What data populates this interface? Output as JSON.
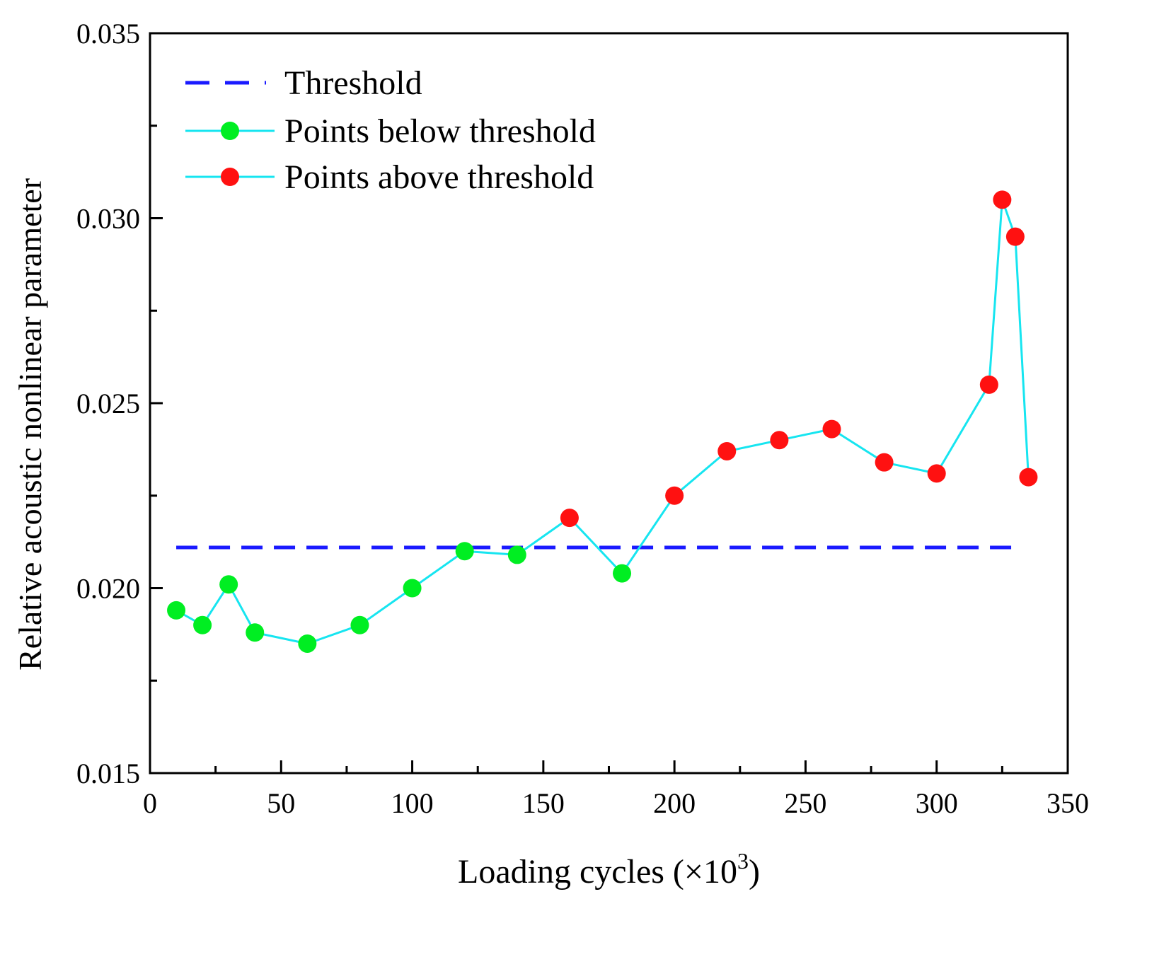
{
  "chart_data": {
    "type": "line",
    "title": "",
    "xlabel": "Loading cycles (×10",
    "xlabel_sup": "3",
    "xlabel_close": ")",
    "ylabel": "Relative acoustic nonlinear parameter",
    "xlim": [
      0,
      350
    ],
    "ylim": [
      0.015,
      0.035
    ],
    "x_ticks": [
      0,
      50,
      100,
      150,
      200,
      250,
      300,
      350
    ],
    "x_tick_labels": [
      "0",
      "50",
      "100",
      "150",
      "200",
      "250",
      "300",
      "350"
    ],
    "x_minor_ticks": [
      25,
      75,
      125,
      175,
      225,
      275,
      325
    ],
    "y_ticks": [
      0.015,
      0.02,
      0.025,
      0.03,
      0.035
    ],
    "y_tick_labels": [
      "0.015",
      "0.020",
      "0.025",
      "0.030",
      "0.035"
    ],
    "y_minor_ticks": [
      0.0175,
      0.0225,
      0.0275,
      0.0325
    ],
    "grid": false,
    "legend_position": "top-left",
    "threshold": {
      "name": "Threshold",
      "value": 0.0211,
      "x_range": [
        10,
        330
      ],
      "color": "#1a1aff",
      "style": "dashed"
    },
    "series": [
      {
        "name": "Points below threshold",
        "line_color": "#16e5f0",
        "marker_color": "#00ee22",
        "points": [
          [
            10,
            0.0194
          ],
          [
            20,
            0.019
          ],
          [
            30,
            0.0201
          ],
          [
            40,
            0.0188
          ],
          [
            60,
            0.0185
          ],
          [
            80,
            0.019
          ],
          [
            100,
            0.02
          ],
          [
            120,
            0.021
          ],
          [
            140,
            0.0209
          ],
          [
            180,
            0.0204
          ]
        ]
      },
      {
        "name": "Points above threshold",
        "line_color": "#16e5f0",
        "marker_color": "#ff1111",
        "points": [
          [
            160,
            0.0219
          ],
          [
            200,
            0.0225
          ],
          [
            220,
            0.0237
          ],
          [
            240,
            0.024
          ],
          [
            260,
            0.0243
          ],
          [
            280,
            0.0234
          ],
          [
            300,
            0.0231
          ],
          [
            320,
            0.0255
          ],
          [
            325,
            0.0305
          ],
          [
            330,
            0.0295
          ],
          [
            335,
            0.023
          ]
        ]
      }
    ],
    "connected_line": {
      "color": "#16e5f0",
      "x": [
        10,
        20,
        30,
        40,
        60,
        80,
        100,
        120,
        140,
        160,
        180,
        200,
        220,
        240,
        260,
        280,
        300,
        320,
        325,
        330,
        335
      ],
      "y": [
        0.0194,
        0.019,
        0.0201,
        0.0188,
        0.0185,
        0.019,
        0.02,
        0.021,
        0.0209,
        0.0219,
        0.0204,
        0.0225,
        0.0237,
        0.024,
        0.0243,
        0.0234,
        0.0231,
        0.0255,
        0.0305,
        0.0295,
        0.023
      ]
    }
  }
}
